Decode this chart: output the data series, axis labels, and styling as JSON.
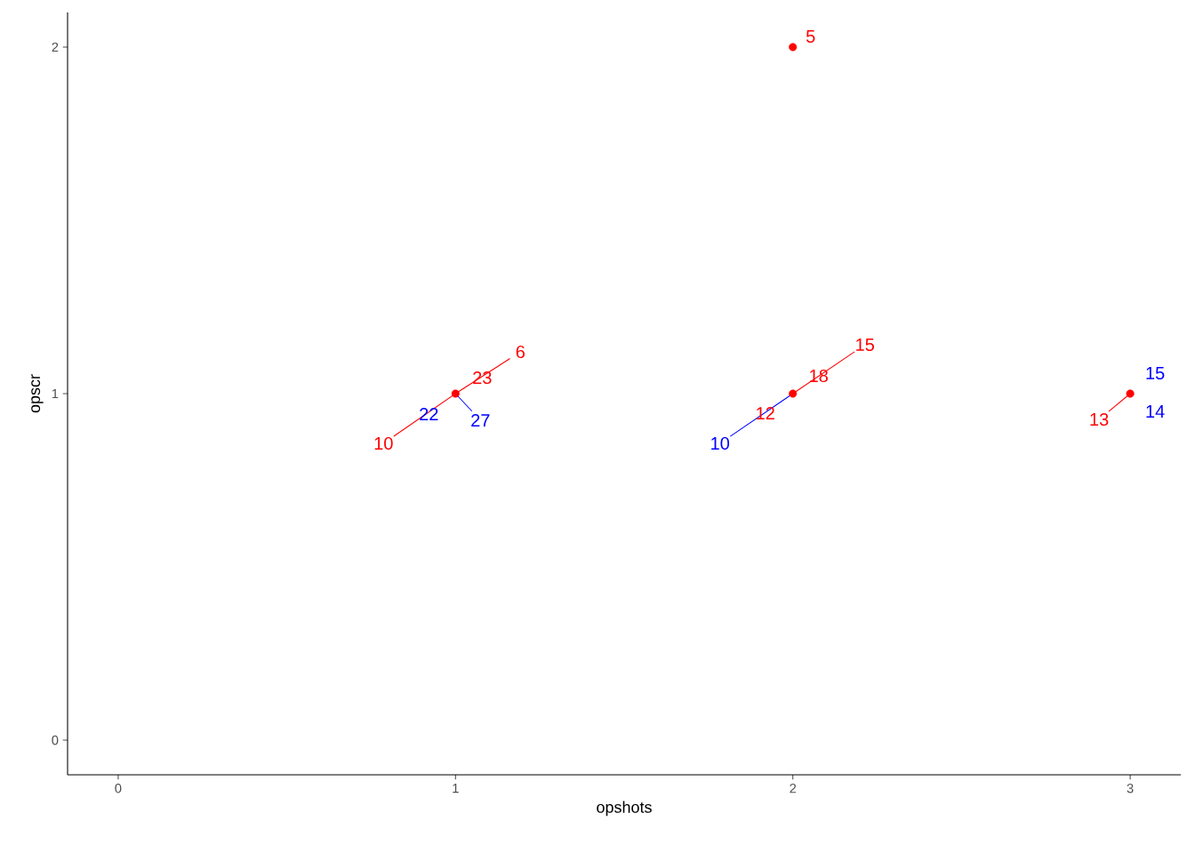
{
  "chart_data": {
    "type": "scatter",
    "xlabel": "opshots",
    "ylabel": "opscr",
    "xlim": [
      -0.15,
      3.15
    ],
    "ylim": [
      -0.1,
      2.1
    ],
    "xticks": [
      0,
      1,
      2,
      3
    ],
    "yticks": [
      0,
      1,
      2
    ],
    "series": [
      {
        "color": "#ff0000",
        "marker": "circle",
        "x": [
          1,
          2,
          2,
          3
        ],
        "values": [
          1,
          1,
          2,
          1
        ]
      }
    ],
    "annotations": [
      {
        "text": "10",
        "x": 1,
        "y": 1
      },
      {
        "text": "23",
        "x": 1,
        "y": 1
      },
      {
        "text": "6",
        "x": 1,
        "y": 1
      },
      {
        "text": "12",
        "x": 2,
        "y": 1
      },
      {
        "text": "18",
        "x": 2,
        "y": 1
      },
      {
        "text": "15",
        "x": 2,
        "y": 1
      },
      {
        "text": "5",
        "x": 2,
        "y": 2
      },
      {
        "text": "13",
        "x": 3,
        "y": 1
      },
      {
        "text": "22",
        "x": 1,
        "y": 1
      },
      {
        "text": "27",
        "x": 1,
        "y": 1
      },
      {
        "text": "10",
        "x": 2,
        "y": 1
      },
      {
        "text": "15",
        "x": 3,
        "y": 1
      },
      {
        "text": "14",
        "x": 3,
        "y": 1
      }
    ]
  }
}
